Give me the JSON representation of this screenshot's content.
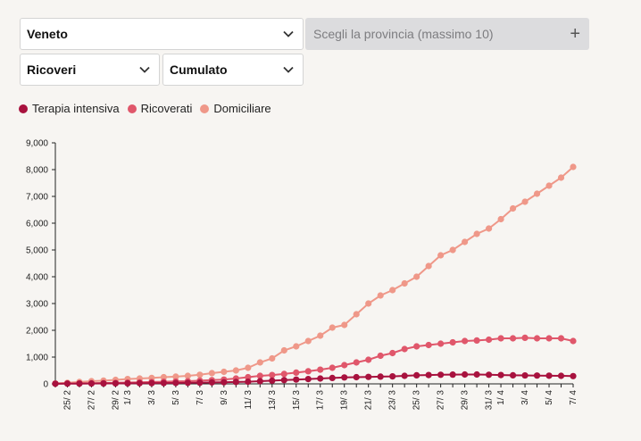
{
  "controls": {
    "region": {
      "label": "Veneto",
      "icon": "chevron-down-icon"
    },
    "province": {
      "placeholder": "Scegli la provincia (massimo 10)",
      "icon": "plus-icon",
      "plus_glyph": "+"
    },
    "category": {
      "label": "Ricoveri",
      "icon": "chevron-down-icon"
    },
    "mode": {
      "label": "Cumulato",
      "icon": "chevron-down-icon"
    }
  },
  "legend": [
    {
      "label": "Terapia intensiva",
      "color": "#a8123e"
    },
    {
      "label": "Ricoverati",
      "color": "#e0576b"
    },
    {
      "label": "Domiciliare",
      "color": "#ef9889"
    }
  ],
  "chart_data": {
    "type": "line",
    "ylim": [
      0,
      9000
    ],
    "y_ticks": [
      "0",
      "1,000",
      "2,000",
      "3,000",
      "4,000",
      "5,000",
      "6,000",
      "7,000",
      "8,000",
      "9,000"
    ],
    "x_tick_labels": [
      "25/ 2",
      "27/ 2",
      "29/ 2",
      "1/ 3",
      "3/ 3",
      "5/ 3",
      "7/ 3",
      "9/ 3",
      "11/ 3",
      "13/ 3",
      "15/ 3",
      "17/ 3",
      "19/ 3",
      "21/ 3",
      "23/ 3",
      "25/ 3",
      "27/ 3",
      "29/ 3",
      "31/ 3",
      "1/ 4",
      "3/ 4",
      "5/ 4",
      "7/ 4"
    ],
    "x": [
      "24/2",
      "25/2",
      "26/2",
      "27/2",
      "28/2",
      "29/2",
      "1/3",
      "2/3",
      "3/3",
      "4/3",
      "5/3",
      "6/3",
      "7/3",
      "8/3",
      "9/3",
      "10/3",
      "11/3",
      "12/3",
      "13/3",
      "14/3",
      "15/3",
      "16/3",
      "17/3",
      "18/3",
      "19/3",
      "20/3",
      "21/3",
      "22/3",
      "23/3",
      "24/3",
      "25/3",
      "26/3",
      "27/3",
      "28/3",
      "29/3",
      "30/3",
      "31/3",
      "1/4",
      "2/4",
      "3/4",
      "4/4",
      "5/4",
      "6/4",
      "7/4"
    ],
    "series": [
      {
        "name": "Domiciliare",
        "color": "#ef9889",
        "values": [
          15,
          40,
          70,
          100,
          120,
          150,
          180,
          200,
          220,
          250,
          270,
          300,
          340,
          400,
          450,
          500,
          600,
          800,
          950,
          1250,
          1400,
          1600,
          1800,
          2100,
          2200,
          2600,
          3000,
          3300,
          3500,
          3750,
          4000,
          4400,
          4800,
          5000,
          5300,
          5600,
          5800,
          6150,
          6550,
          6800,
          7100,
          7400,
          7700,
          8100
        ]
      },
      {
        "name": "Ricoverati",
        "color": "#e0576b",
        "values": [
          10,
          15,
          20,
          25,
          35,
          40,
          50,
          60,
          70,
          80,
          90,
          100,
          120,
          140,
          160,
          200,
          250,
          300,
          330,
          370,
          420,
          470,
          530,
          600,
          700,
          800,
          900,
          1050,
          1150,
          1300,
          1400,
          1450,
          1500,
          1550,
          1600,
          1620,
          1650,
          1700,
          1700,
          1720,
          1700,
          1700,
          1700,
          1600
        ]
      },
      {
        "name": "Terapia intensiva",
        "color": "#a8123e",
        "values": [
          5,
          8,
          10,
          12,
          15,
          18,
          20,
          25,
          28,
          30,
          35,
          40,
          45,
          55,
          60,
          70,
          80,
          100,
          120,
          140,
          160,
          180,
          200,
          220,
          240,
          250,
          260,
          270,
          280,
          300,
          320,
          330,
          340,
          345,
          350,
          350,
          340,
          330,
          320,
          315,
          310,
          305,
          300,
          290
        ]
      }
    ]
  }
}
